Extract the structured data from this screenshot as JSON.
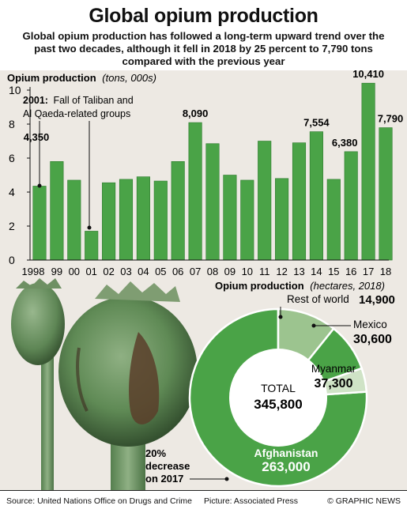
{
  "title": "Global opium production",
  "subtitle": "Global opium production has followed a long-term upward trend over the past two decades, although it fell in 2018 by 25 percent to 7,790 tons compared with the previous year",
  "colors": {
    "bar": "#4aa347",
    "bar_dark": "#2c7a2c",
    "donut_main": "#4aa347",
    "donut_light": "#9cc48f",
    "donut_pale": "#cfe3c6"
  },
  "bar_chart": {
    "heading_bold": "Opium production",
    "heading_italic": "(tons, 000s)",
    "annotation_year": "2001:",
    "annotation_text_1": "Fall of Taliban and",
    "annotation_text_2": "Al Qaeda-related groups"
  },
  "donut_chart": {
    "heading_bold": "Opium production",
    "heading_italic": "(hectares, 2018)",
    "total_label": "TOTAL",
    "total_value": "345,800",
    "decrease_note_1": "20%",
    "decrease_note_2": "decrease",
    "decrease_note_3": "on 2017",
    "labels": [
      {
        "name": "Afghanistan",
        "value": "263,000"
      },
      {
        "name": "Myanmar",
        "value": "37,300"
      },
      {
        "name": "Mexico",
        "value": "30,600"
      },
      {
        "name": "Rest of world",
        "value": "14,900"
      }
    ]
  },
  "chart_data": [
    {
      "type": "bar",
      "title": "Opium production",
      "ylabel": "tons, 000s",
      "ylim": [
        0,
        10
      ],
      "yticks": [
        0,
        2,
        4,
        6,
        8,
        10
      ],
      "categories": [
        "1998",
        "99",
        "00",
        "01",
        "02",
        "03",
        "04",
        "05",
        "06",
        "07",
        "08",
        "09",
        "10",
        "11",
        "12",
        "13",
        "14",
        "15",
        "16",
        "17",
        "18"
      ],
      "values": [
        4.35,
        5.8,
        4.7,
        1.7,
        4.55,
        4.75,
        4.9,
        4.65,
        5.8,
        8.09,
        6.85,
        5.0,
        4.7,
        7.0,
        4.8,
        6.9,
        7.554,
        4.75,
        6.38,
        10.41,
        7.79
      ],
      "data_labels": {
        "1998": "4,350",
        "07": "8,090",
        "14": "7,554",
        "16": "6,380",
        "17": "10,410",
        "18": "7,790"
      },
      "grid": false
    },
    {
      "type": "pie",
      "title": "Opium production",
      "subtitle": "hectares, 2018",
      "categories": [
        "Afghanistan",
        "Myanmar",
        "Mexico",
        "Rest of world"
      ],
      "values": [
        263000,
        37300,
        30600,
        14900
      ],
      "total": 345800
    }
  ],
  "footer": {
    "source": "Source: United Nations Office on Drugs and Crime",
    "picture": "Picture: Associated Press",
    "credit": "© GRAPHIC NEWS"
  }
}
